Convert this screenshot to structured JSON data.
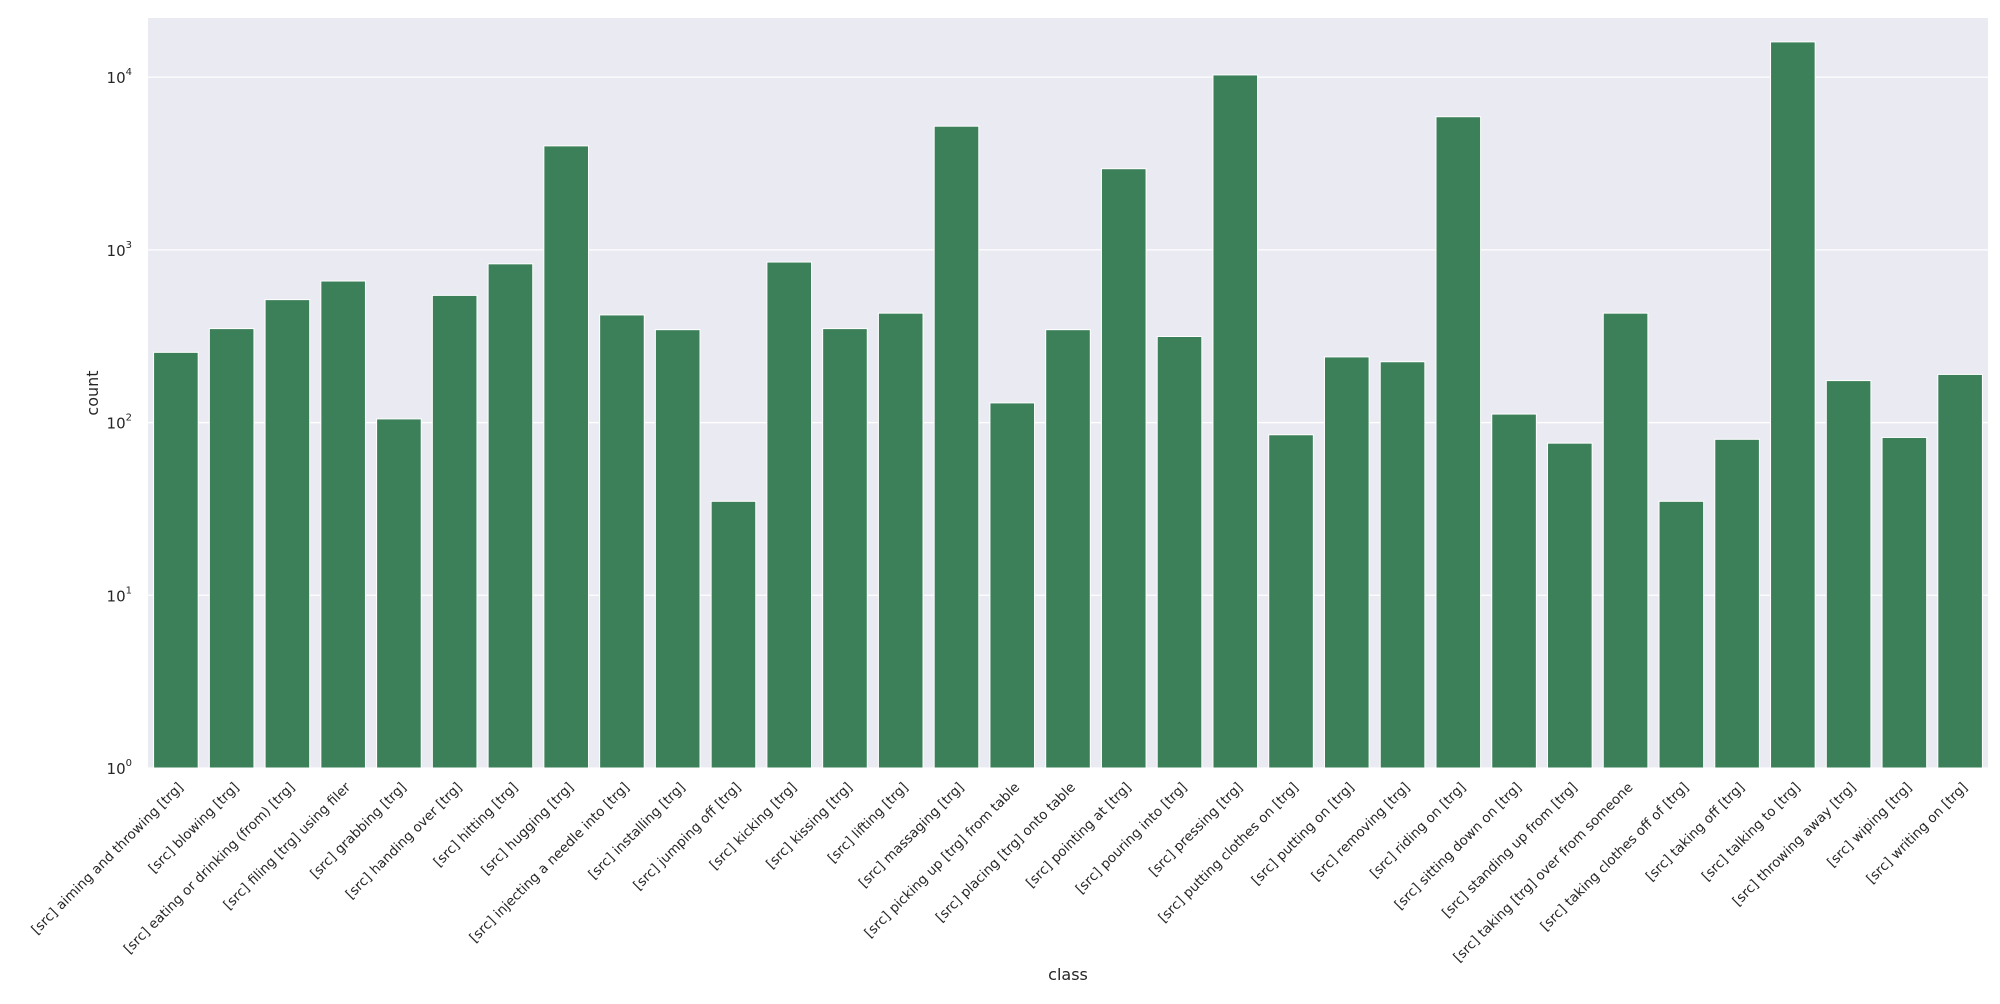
{
  "chart_data": {
    "type": "bar",
    "title": "",
    "xlabel": "class",
    "ylabel": "count",
    "yscale": "log",
    "ylim": [
      1,
      22000
    ],
    "grid": true,
    "legend": "none",
    "colors": {
      "bar": "#3b8059",
      "plot_background": "#eaeaf2",
      "grid": "#ffffff",
      "page_background": "#ffffff"
    },
    "yticks": [
      {
        "value": 1,
        "base": "10",
        "exp": "0"
      },
      {
        "value": 10,
        "base": "10",
        "exp": "1"
      },
      {
        "value": 100,
        "base": "10",
        "exp": "2"
      },
      {
        "value": 1000,
        "base": "10",
        "exp": "3"
      },
      {
        "value": 10000,
        "base": "10",
        "exp": "4"
      }
    ],
    "categories": [
      "[src] aiming and throwing [trg]",
      "[src] blowing [trg]",
      "[src] eating or drinking (from) [trg]",
      "[src] filing [trg] using filer",
      "[src] grabbing [trg]",
      "[src] handing over [trg]",
      "[src] hitting [trg]",
      "[src] hugging [trg]",
      "[src] injecting a needle into [trg]",
      "[src] installing [trg]",
      "[src] jumping off [trg]",
      "[src] kicking [trg]",
      "[src] kissing [trg]",
      "[src] lifting [trg]",
      "[src] massaging [trg]",
      "[src] picking up [trg] from table",
      "[src] placing [trg] onto table",
      "[src] pointing at [trg]",
      "[src] pouring into [trg]",
      "[src] pressing [trg]",
      "[src] putting clothes on [trg]",
      "[src] putting on [trg]",
      "[src] removing [trg]",
      "[src] riding on [trg]",
      "[src] sitting down on [trg]",
      "[src] standing up from [trg]",
      "[src] taking [trg] over from someone",
      "[src] taking clothes off of [trg]",
      "[src] taking off [trg]",
      "[src] talking to [trg]",
      "[src] throwing away [trg]",
      "[src] wiping [trg]",
      "[src] writing on [trg]"
    ],
    "values": [
      255,
      350,
      515,
      660,
      105,
      545,
      830,
      4000,
      420,
      345,
      35,
      850,
      350,
      430,
      5200,
      130,
      345,
      2950,
      315,
      10300,
      85,
      240,
      225,
      5900,
      112,
      76,
      430,
      35,
      80,
      16000,
      175,
      82,
      190
    ]
  }
}
